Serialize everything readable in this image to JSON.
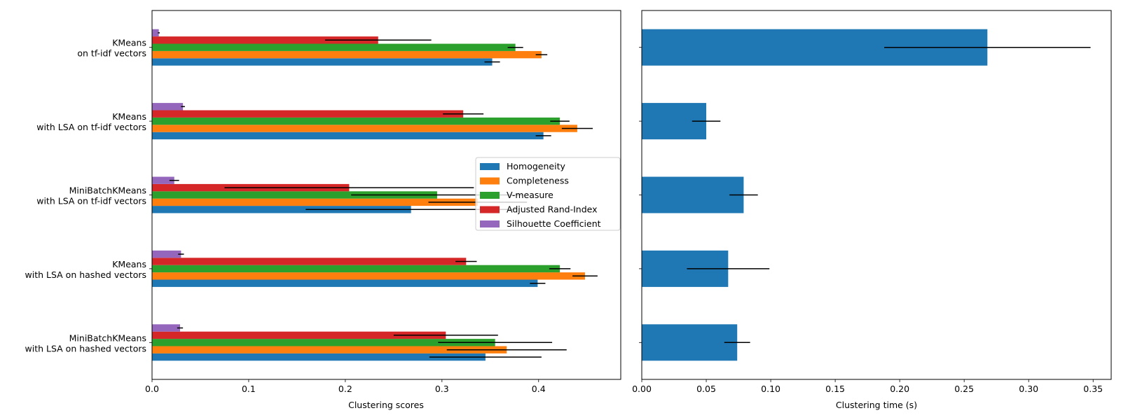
{
  "chart_data": [
    {
      "type": "bar",
      "orientation": "horizontal",
      "title": "",
      "xlabel": "Clustering scores",
      "ylabel": "",
      "xlim": [
        0,
        0.485
      ],
      "xticks": [
        0.0,
        0.1,
        0.2,
        0.3,
        0.4
      ],
      "xtick_labels": [
        "0.0",
        "0.1",
        "0.2",
        "0.3",
        "0.4"
      ],
      "categories": [
        "KMeans\non tf-idf vectors",
        "KMeans\nwith LSA on tf-idf vectors",
        "MiniBatchKMeans\nwith LSA on tf-idf vectors",
        "KMeans\nwith LSA on hashed vectors",
        "MiniBatchKMeans\nwith LSA on hashed vectors"
      ],
      "grid": false,
      "legend": {
        "placement": "center-right"
      },
      "series": [
        {
          "name": "Homogeneity",
          "color": "#1f77b4",
          "values": [
            0.352,
            0.405,
            0.268,
            0.399,
            0.345
          ],
          "errors": [
            0.008,
            0.008,
            0.109,
            0.008,
            0.058
          ]
        },
        {
          "name": "Completeness",
          "color": "#ff7f0e",
          "values": [
            0.403,
            0.44,
            0.337,
            0.448,
            0.367
          ],
          "errors": [
            0.006,
            0.016,
            0.051,
            0.013,
            0.062
          ]
        },
        {
          "name": "V-measure",
          "color": "#2ca02c",
          "values": [
            0.376,
            0.422,
            0.295,
            0.422,
            0.355
          ],
          "errors": [
            0.008,
            0.01,
            0.089,
            0.011,
            0.059
          ]
        },
        {
          "name": "Adjusted Rand-Index",
          "color": "#d62728",
          "values": [
            0.234,
            0.322,
            0.204,
            0.325,
            0.304
          ],
          "errors": [
            0.055,
            0.021,
            0.129,
            0.011,
            0.054
          ]
        },
        {
          "name": "Silhouette Coefficient",
          "color": "#9467bd",
          "values": [
            0.007,
            0.032,
            0.023,
            0.03,
            0.029
          ],
          "errors": [
            0.001,
            0.002,
            0.005,
            0.003,
            0.003
          ]
        }
      ]
    },
    {
      "type": "bar",
      "orientation": "horizontal",
      "title": "",
      "xlabel": "Clustering time (s)",
      "ylabel": "",
      "xlim": [
        0,
        0.364
      ],
      "xticks": [
        0.0,
        0.05,
        0.1,
        0.15,
        0.2,
        0.25,
        0.3,
        0.35
      ],
      "xtick_labels": [
        "0.00",
        "0.05",
        "0.10",
        "0.15",
        "0.20",
        "0.25",
        "0.30",
        "0.35"
      ],
      "grid": false,
      "series": [
        {
          "name": "Clustering time",
          "color": "#1f77b4",
          "values": [
            0.268,
            0.05,
            0.079,
            0.067,
            0.074
          ],
          "errors": [
            0.08,
            0.011,
            0.011,
            0.032,
            0.01
          ]
        }
      ]
    }
  ]
}
